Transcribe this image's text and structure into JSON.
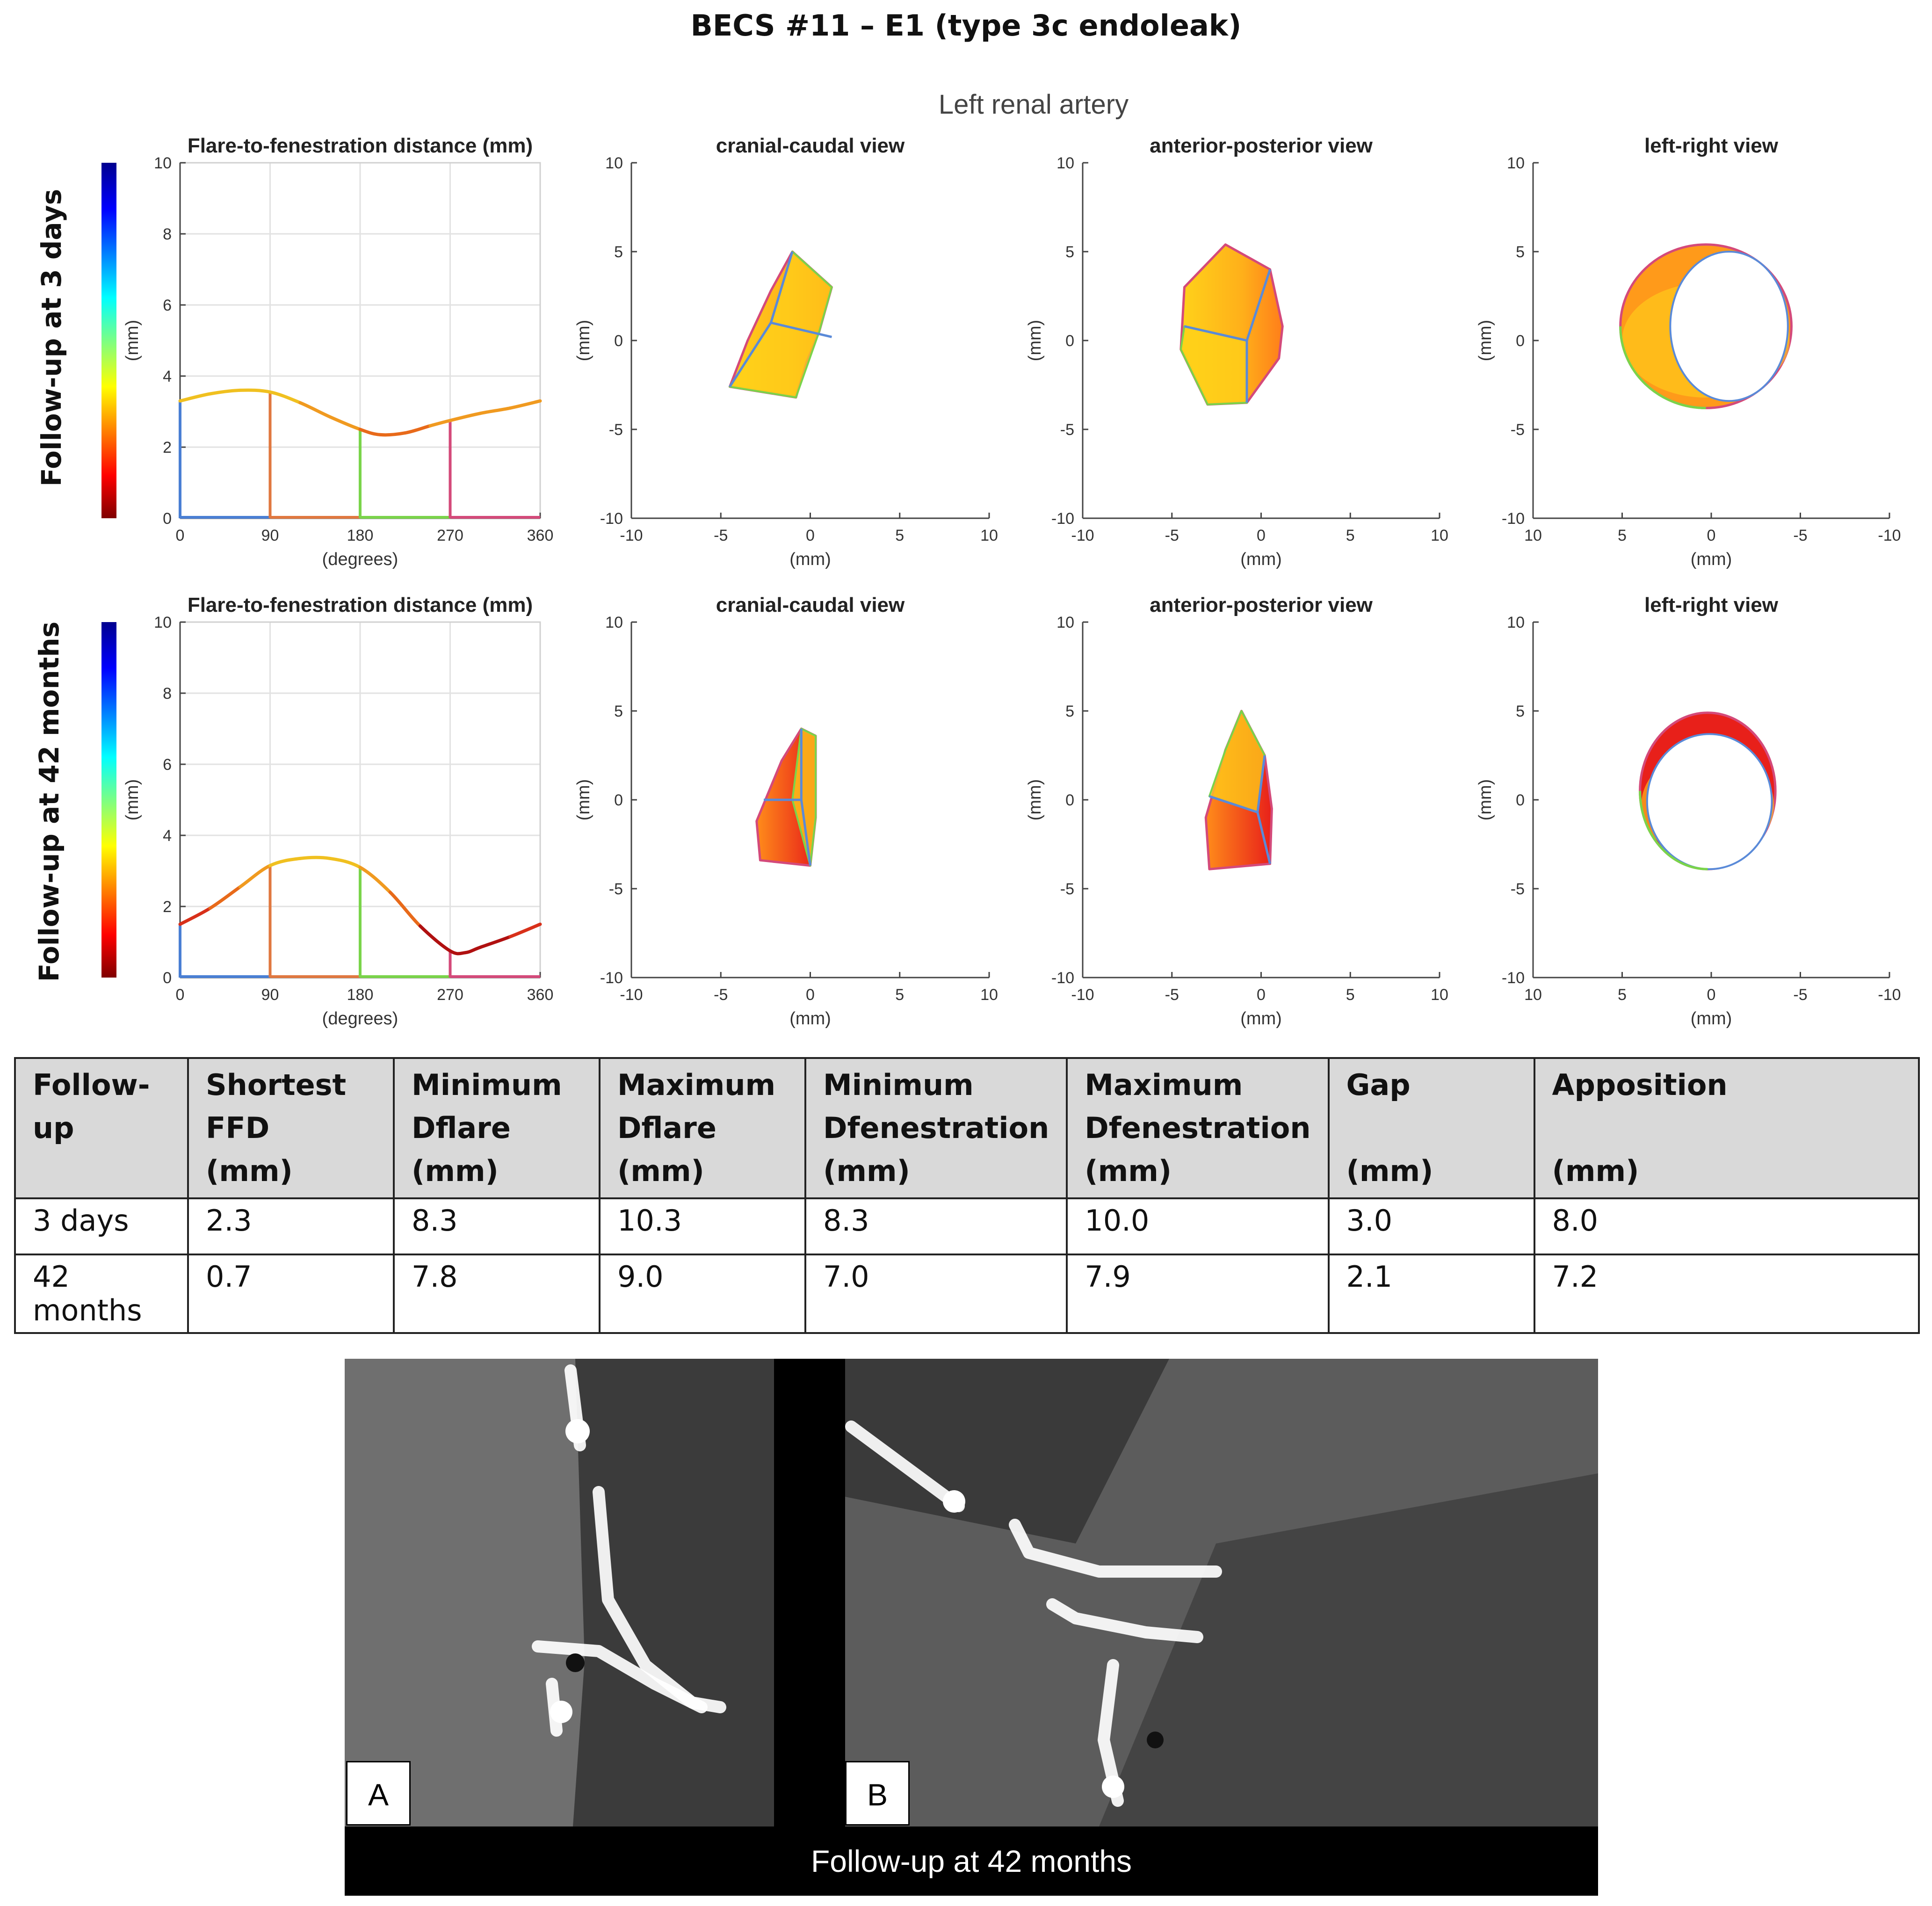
{
  "figure_title": "BECS #11 – E1 (type 3c endoleak)",
  "artery_title": "Left renal artery",
  "row_labels": [
    "Follow-up at 3 days",
    "Follow-up at 42 months"
  ],
  "colors": {
    "q1": "#4a7fd4",
    "q2": "#e07840",
    "q3": "#7ad44a",
    "q4": "#d44a7a",
    "shape_yellow": "#ffd21a",
    "shape_orange": "#ff8c1a",
    "shape_red": "#e8201a",
    "edge_blue": "#5a8ad8"
  },
  "chart_data": [
    {
      "type": "line",
      "row": "3 days",
      "title": "Flare-to-fenestration distance (mm)",
      "xlabel": "(degrees)",
      "ylabel": "(mm)",
      "xlim": [
        0,
        360
      ],
      "ylim": [
        0,
        10
      ],
      "xticks": [
        0,
        90,
        180,
        270,
        360
      ],
      "yticks": [
        0,
        2,
        4,
        6,
        8,
        10
      ],
      "grid": true,
      "colorbar": "jet",
      "x": [
        0,
        30,
        60,
        90,
        120,
        150,
        180,
        200,
        225,
        250,
        270,
        300,
        330,
        360
      ],
      "values": [
        3.3,
        3.5,
        3.6,
        3.55,
        3.25,
        2.85,
        2.5,
        2.35,
        2.4,
        2.6,
        2.75,
        2.95,
        3.1,
        3.3
      ],
      "quadrant_markers": [
        {
          "angle": 90,
          "value": 3.55
        },
        {
          "angle": 180,
          "value": 2.5
        },
        {
          "angle": 270,
          "value": 2.75
        }
      ],
      "start_value": 3.3
    },
    {
      "type": "scatter",
      "row": "3 days",
      "title": "cranial-caudal view",
      "xlabel": "(mm)",
      "ylabel": "(mm)",
      "xlim": [
        -10,
        10
      ],
      "ylim": [
        -10,
        10
      ],
      "xticks": [
        -10,
        -5,
        0,
        5,
        10
      ],
      "yticks": [
        -10,
        -5,
        0,
        5,
        10
      ],
      "outer": [
        [
          -1,
          5
        ],
        [
          1.2,
          3
        ],
        [
          0.5,
          0.5
        ],
        [
          -0.2,
          -1.2
        ],
        [
          -0.8,
          -3.2
        ],
        [
          -4.5,
          -2.6
        ],
        [
          -3.5,
          0
        ],
        [
          -2.2,
          2.8
        ]
      ],
      "face": [
        [
          -2.2,
          1
        ],
        [
          -1,
          5
        ],
        [
          1.2,
          3
        ],
        [
          0.5,
          0.5
        ],
        [
          -0.8,
          -3.2
        ],
        [
          -4.5,
          -2.6
        ]
      ],
      "edges": [
        [
          [
            -2.2,
            1
          ],
          [
            -1,
            5
          ]
        ],
        [
          [
            -2.2,
            1
          ],
          [
            1.2,
            0.2
          ]
        ],
        [
          [
            -2.2,
            1
          ],
          [
            -4.5,
            -2.6
          ]
        ]
      ]
    },
    {
      "type": "scatter",
      "row": "3 days",
      "title": "anterior-posterior view",
      "xlabel": "(mm)",
      "ylabel": "(mm)",
      "xlim": [
        -10,
        10
      ],
      "ylim": [
        -10,
        10
      ],
      "xticks": [
        -10,
        -5,
        0,
        5,
        10
      ],
      "yticks": [
        -10,
        -5,
        0,
        5,
        10
      ],
      "outer": [
        [
          -2,
          5.4
        ],
        [
          0.5,
          4
        ],
        [
          1.2,
          0.8
        ],
        [
          1,
          -1
        ],
        [
          -0.8,
          -3.5
        ],
        [
          -3,
          -3.6
        ],
        [
          -4.5,
          -0.5
        ],
        [
          -4.3,
          3
        ]
      ],
      "face": [
        [
          -4.3,
          0.8
        ],
        [
          -0.8,
          0
        ],
        [
          -0.8,
          -3.5
        ],
        [
          -3,
          -3.6
        ],
        [
          -4.5,
          -0.5
        ]
      ],
      "edges": [
        [
          [
            -4.3,
            0.8
          ],
          [
            -0.8,
            0
          ]
        ],
        [
          [
            -0.8,
            0
          ],
          [
            0.5,
            4
          ]
        ],
        [
          [
            -0.8,
            0
          ],
          [
            -0.8,
            -3.5
          ]
        ]
      ]
    },
    {
      "type": "scatter",
      "row": "3 days",
      "title": "left-right view",
      "xlabel": "(mm)",
      "ylabel": "(mm)",
      "xlim": [
        10,
        -10
      ],
      "ylim": [
        -10,
        10
      ],
      "xticks": [
        10,
        5,
        0,
        -5,
        -10
      ],
      "yticks": [
        -10,
        -5,
        0,
        5,
        10
      ],
      "outer_ellipse": {
        "cx": 0.3,
        "cy": 0.8,
        "rx": 4.8,
        "ry": 4.6
      },
      "inner_ellipse": {
        "cx": -1,
        "cy": 0.8,
        "rx": 3.3,
        "ry": 4.2
      }
    },
    {
      "type": "line",
      "row": "42 months",
      "title": "Flare-to-fenestration distance (mm)",
      "xlabel": "(degrees)",
      "ylabel": "(mm)",
      "xlim": [
        0,
        360
      ],
      "ylim": [
        0,
        10
      ],
      "xticks": [
        0,
        90,
        180,
        270,
        360
      ],
      "yticks": [
        0,
        2,
        4,
        6,
        8,
        10
      ],
      "grid": true,
      "colorbar": "jet",
      "x": [
        0,
        30,
        60,
        90,
        120,
        150,
        180,
        210,
        240,
        270,
        285,
        300,
        330,
        360
      ],
      "values": [
        1.5,
        1.95,
        2.55,
        3.15,
        3.35,
        3.35,
        3.1,
        2.4,
        1.45,
        0.75,
        0.7,
        0.85,
        1.15,
        1.5
      ],
      "quadrant_markers": [
        {
          "angle": 90,
          "value": 3.15
        },
        {
          "angle": 180,
          "value": 3.1
        },
        {
          "angle": 270,
          "value": 0.75
        }
      ],
      "start_value": 1.5
    },
    {
      "type": "scatter",
      "row": "42 months",
      "title": "cranial-caudal view",
      "xlabel": "(mm)",
      "ylabel": "(mm)",
      "xlim": [
        -10,
        10
      ],
      "ylim": [
        -10,
        10
      ],
      "xticks": [
        -10,
        -5,
        0,
        5,
        10
      ],
      "yticks": [
        -10,
        -5,
        0,
        5,
        10
      ],
      "outer": [
        [
          -0.5,
          4
        ],
        [
          0.3,
          3.6
        ],
        [
          0.3,
          -1
        ],
        [
          0,
          -3.7
        ],
        [
          -2.8,
          -3.4
        ],
        [
          -3,
          -1.2
        ],
        [
          -1.6,
          2.2
        ]
      ],
      "face": [
        [
          -0.5,
          4
        ],
        [
          0.3,
          3.6
        ],
        [
          0.3,
          -1
        ],
        [
          0,
          -3.7
        ],
        [
          -1,
          0
        ]
      ],
      "edges": [
        [
          [
            -2.6,
            0
          ],
          [
            -0.5,
            0
          ]
        ],
        [
          [
            -0.5,
            0
          ],
          [
            0,
            -3.7
          ]
        ],
        [
          [
            -0.5,
            4
          ],
          [
            -0.5,
            0
          ]
        ]
      ]
    },
    {
      "type": "scatter",
      "row": "42 months",
      "title": "anterior-posterior view",
      "xlabel": "(mm)",
      "ylabel": "(mm)",
      "xlim": [
        -10,
        10
      ],
      "ylim": [
        -10,
        10
      ],
      "xticks": [
        -10,
        -5,
        0,
        5,
        10
      ],
      "yticks": [
        -10,
        -5,
        0,
        5,
        10
      ],
      "outer": [
        [
          -1.1,
          5
        ],
        [
          0.2,
          2.5
        ],
        [
          0.6,
          -0.5
        ],
        [
          0.5,
          -3.6
        ],
        [
          -2.9,
          -3.9
        ],
        [
          -3.1,
          -1
        ],
        [
          -2,
          2.8
        ]
      ],
      "face": [
        [
          -1.1,
          5
        ],
        [
          0.2,
          2.5
        ],
        [
          -0.2,
          -0.7
        ],
        [
          -2.9,
          0.2
        ],
        [
          -2,
          2.8
        ]
      ],
      "edges": [
        [
          [
            -2.9,
            0.2
          ],
          [
            -0.2,
            -0.7
          ]
        ],
        [
          [
            -0.2,
            -0.7
          ],
          [
            0.5,
            -3.6
          ]
        ],
        [
          [
            -0.2,
            -0.7
          ],
          [
            0.2,
            2.5
          ]
        ]
      ]
    },
    {
      "type": "scatter",
      "row": "42 months",
      "title": "left-right view",
      "xlabel": "(mm)",
      "ylabel": "(mm)",
      "xlim": [
        10,
        -10
      ],
      "ylim": [
        -10,
        10
      ],
      "xticks": [
        10,
        5,
        0,
        -5,
        -10
      ],
      "yticks": [
        -10,
        -5,
        0,
        5,
        10
      ],
      "outer_ellipse": {
        "cx": 0.2,
        "cy": 0.5,
        "rx": 3.8,
        "ry": 4.4
      },
      "inner_ellipse": {
        "cx": 0.1,
        "cy": -0.1,
        "rx": 3.5,
        "ry": 3.8
      }
    }
  ],
  "table": {
    "headers": [
      [
        "Follow-up",
        "",
        ""
      ],
      [
        "Shortest",
        "FFD",
        "(mm)"
      ],
      [
        "Minimum",
        "Dflare",
        "(mm)"
      ],
      [
        "Maximum",
        "Dflare",
        "(mm)"
      ],
      [
        "Minimum",
        "Dfenestration",
        "(mm)"
      ],
      [
        "Maximum",
        "Dfenestration",
        "(mm)"
      ],
      [
        "Gap",
        "",
        "(mm)"
      ],
      [
        "Apposition",
        "",
        "(mm)"
      ]
    ],
    "rows": [
      [
        "3 days",
        "2.3",
        "8.3",
        "10.3",
        "8.3",
        "10.0",
        "3.0",
        "8.0"
      ],
      [
        "42 months",
        "0.7",
        "7.8",
        "9.0",
        "7.0",
        "7.9",
        "2.1",
        "7.2"
      ]
    ]
  },
  "ct": {
    "panel_a_label": "A",
    "panel_b_label": "B",
    "caption": "Follow-up at 42 months"
  }
}
